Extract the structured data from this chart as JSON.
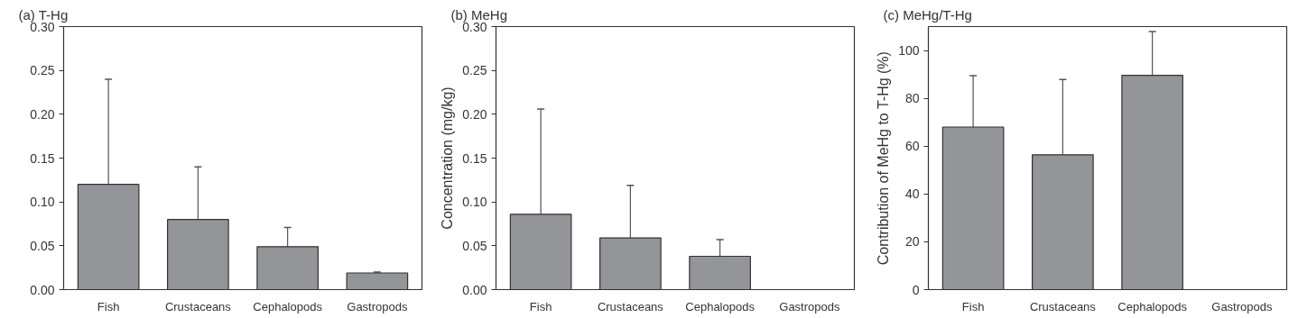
{
  "chart_data": [
    {
      "type": "bar",
      "title": "(a) T-Hg",
      "categories": [
        "Fish",
        "Crustaceans",
        "Cephalopods",
        "Gastropods"
      ],
      "values": [
        0.12,
        0.08,
        0.049,
        0.019
      ],
      "color": "#939598",
      "errors": [
        [
          0.12,
          0.24
        ],
        [
          0.08,
          0.14
        ],
        [
          0.049,
          0.071
        ],
        [
          0.019,
          0.02
        ]
      ],
      "ylim": [
        0,
        0.3
      ],
      "yticks": [
        {
          "value": 0,
          "label": "0.00"
        },
        0.05,
        {
          "value": 0.1,
          "label": "0.10"
        },
        0.15,
        {
          "value": 0.2,
          "label": "0.20"
        },
        0.25,
        {
          "value": 0.3,
          "label": "0.30"
        }
      ],
      "grid": false
    },
    {
      "type": "bar",
      "title": "(b) MeHg",
      "ylabel": "Concentration (mg/kg)",
      "categories": [
        "Fish",
        "Crustaceans",
        "Cephalopods",
        "Gastropods"
      ],
      "values": [
        0.086,
        0.059,
        0.038,
        null
      ],
      "color": "#939598",
      "errors": [
        [
          0.086,
          0.206
        ],
        [
          0.059,
          0.119
        ],
        [
          0.038,
          0.057
        ],
        null
      ],
      "ylim": [
        0,
        0.3
      ],
      "yticks": [
        {
          "value": 0,
          "label": "0.00"
        },
        0.05,
        {
          "value": 0.1,
          "label": "0.10"
        },
        0.15,
        {
          "value": 0.2,
          "label": "0.20"
        },
        0.25,
        {
          "value": 0.3,
          "label": "0.30"
        }
      ],
      "grid": false
    },
    {
      "type": "bar",
      "title": "(c) MeHg/T-Hg",
      "ylabel": "Contribution of MeHg to T-Hg (%)",
      "categories": [
        "Fish",
        "Crustaceans",
        "Cephalopods",
        "Gastropods"
      ],
      "values": [
        68,
        56.4,
        89.6,
        null
      ],
      "color": "#939598",
      "errors": [
        [
          68,
          89.5
        ],
        [
          56.4,
          87.9
        ],
        [
          89.6,
          107.9
        ],
        null
      ],
      "ylim": [
        0,
        110
      ],
      "yticks": [
        0,
        20,
        40,
        60,
        80,
        100
      ],
      "grid": false
    }
  ]
}
